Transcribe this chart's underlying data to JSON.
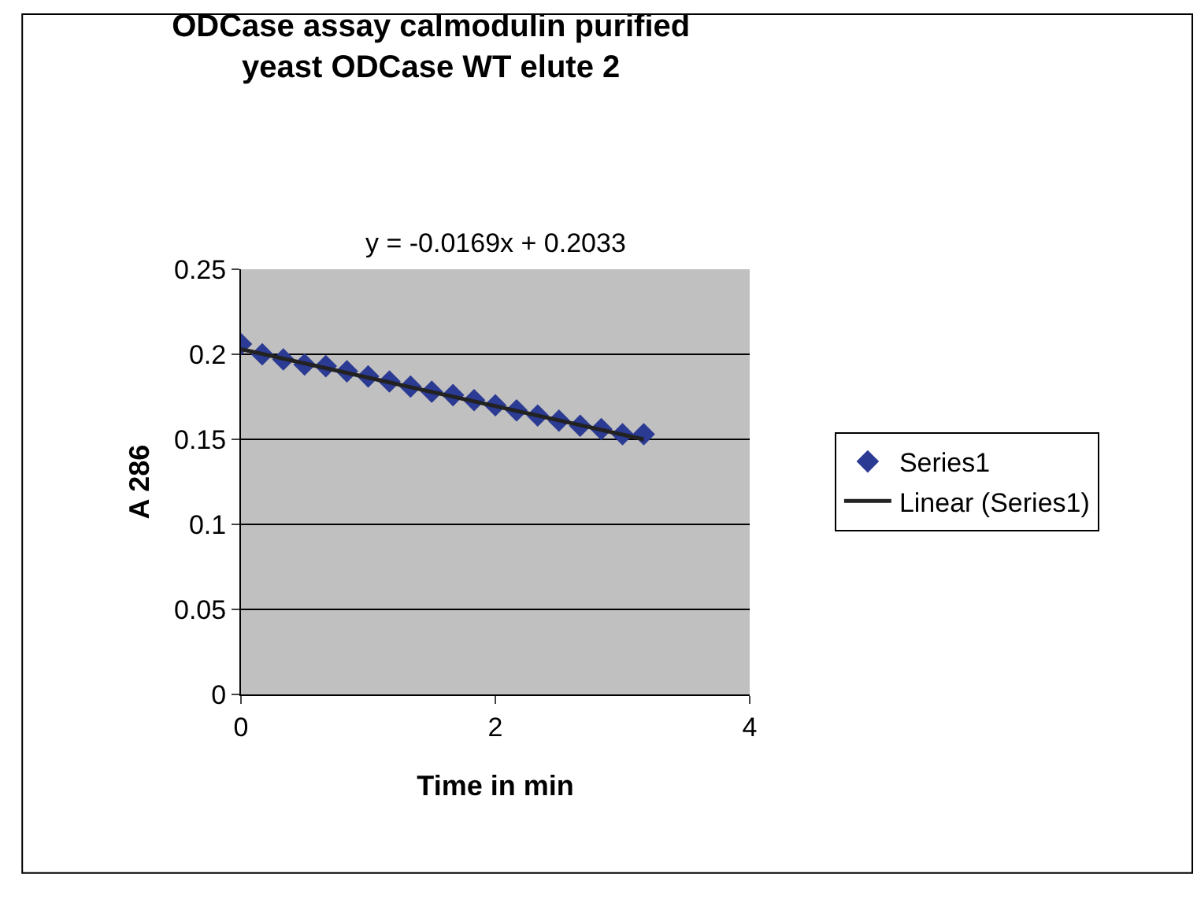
{
  "chart_data": {
    "type": "scatter",
    "title": "ODCase assay calmodulin purified\nyeast ODCase WT elute 2",
    "xlabel": "Time in min",
    "ylabel": "A 286",
    "annotations": [
      "y = -0.0169x + 0.2033"
    ],
    "xlim": [
      0,
      4
    ],
    "xticks": [
      0,
      2,
      4
    ],
    "ylim": [
      0,
      0.25
    ],
    "yticks": [
      0,
      0.05,
      0.1,
      0.15,
      0.2,
      0.25
    ],
    "grid": "y",
    "legend": "right",
    "series": [
      {
        "name": "Series1",
        "type": "scatter",
        "marker": "diamond",
        "color": "#2b3a93",
        "x": [
          0,
          0.167,
          0.333,
          0.5,
          0.667,
          0.833,
          1,
          1.167,
          1.333,
          1.5,
          1.667,
          1.833,
          2,
          2.167,
          2.333,
          2.5,
          2.667,
          2.833,
          3,
          3.167
        ],
        "values": [
          0.206,
          0.2,
          0.197,
          0.194,
          0.193,
          0.19,
          0.187,
          0.184,
          0.181,
          0.178,
          0.176,
          0.173,
          0.17,
          0.167,
          0.164,
          0.161,
          0.158,
          0.156,
          0.153,
          0.153
        ]
      },
      {
        "name": "Linear (Series1)",
        "type": "line",
        "line_style": "solid",
        "marker": "none",
        "color": "#222222",
        "x": [
          0,
          3.167
        ],
        "values": [
          0.203,
          0.15
        ]
      }
    ]
  }
}
